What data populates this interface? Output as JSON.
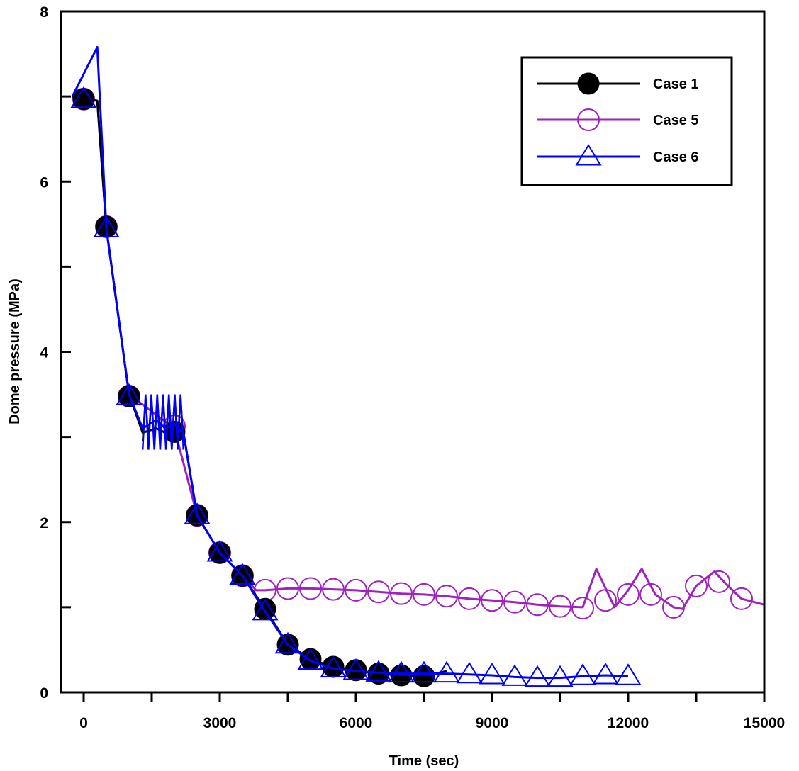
{
  "chart_data": {
    "type": "line",
    "title": "",
    "xlabel": "Time (sec)",
    "ylabel": "Dome pressure (MPa)",
    "xlim": [
      -500,
      15000
    ],
    "ylim": [
      0,
      8
    ],
    "x_ticks": [
      0,
      3000,
      6000,
      9000,
      12000,
      15000
    ],
    "x_tick_labels": [
      "0",
      "3000",
      "6000",
      "9000",
      "12000",
      "15000"
    ],
    "x_minor_ticks": [
      1500,
      4500,
      7500,
      10500,
      13500
    ],
    "y_ticks": [
      0,
      2,
      4,
      6,
      8
    ],
    "y_tick_labels": [
      "0",
      "2",
      "4",
      "6",
      "8"
    ],
    "y_minor_ticks": [
      1,
      3,
      5,
      7
    ],
    "grid": false,
    "legend_position": "top-right",
    "series": [
      {
        "name": "Case 1",
        "color": "#000000",
        "marker": "filled-circle",
        "x": [
          -250,
          300,
          500,
          1000,
          1300,
          1600,
          1800,
          2000,
          2200,
          2500,
          3000,
          3500,
          4000,
          4500,
          5000,
          5500,
          6000,
          6500,
          7000,
          7500,
          8000
        ],
        "y": [
          7.0,
          6.95,
          5.45,
          3.5,
          3.05,
          3.1,
          3.05,
          3.1,
          3.05,
          2.08,
          1.64,
          1.37,
          0.98,
          0.56,
          0.39,
          0.3,
          0.26,
          0.22,
          0.2,
          0.19,
          0.25
        ],
        "marker_x": [
          0,
          500,
          1000,
          2000,
          2500,
          3000,
          3500,
          4000,
          4500,
          5000,
          5500,
          6000,
          6500,
          7000,
          7500
        ],
        "marker_y": [
          6.97,
          5.47,
          3.48,
          3.06,
          2.08,
          1.64,
          1.37,
          0.98,
          0.56,
          0.39,
          0.3,
          0.26,
          0.22,
          0.2,
          0.19
        ]
      },
      {
        "name": "Case 5",
        "color": "#a020c0",
        "marker": "open-circle",
        "x": [
          -250,
          300,
          500,
          1000,
          2000,
          2500,
          3000,
          3500,
          3800,
          4000,
          4500,
          5000,
          5500,
          6000,
          6500,
          7000,
          7500,
          8000,
          8500,
          9000,
          9500,
          10000,
          10500,
          11000,
          11300,
          11700,
          12000,
          12300,
          12600,
          13000,
          13200,
          13500,
          13900,
          14200,
          14500,
          15000
        ],
        "y": [
          7.0,
          6.95,
          5.45,
          3.5,
          3.1,
          2.08,
          1.64,
          1.37,
          1.2,
          1.2,
          1.22,
          1.22,
          1.21,
          1.2,
          1.18,
          1.16,
          1.15,
          1.13,
          1.1,
          1.08,
          1.06,
          1.03,
          1.01,
          1.0,
          1.45,
          1.0,
          1.2,
          1.45,
          1.15,
          1.0,
          0.98,
          1.25,
          1.42,
          1.25,
          1.1,
          1.03
        ],
        "marker_x": [
          0,
          500,
          1000,
          2000,
          2500,
          3000,
          3500,
          4000,
          4500,
          5000,
          5500,
          6000,
          6500,
          7000,
          7500,
          8000,
          8500,
          9000,
          9500,
          10000,
          10500,
          11000,
          11500,
          12000,
          12500,
          13000,
          13500,
          14000,
          14500
        ],
        "marker_y": [
          6.97,
          5.47,
          3.48,
          3.13,
          2.08,
          1.64,
          1.37,
          1.2,
          1.22,
          1.22,
          1.21,
          1.2,
          1.18,
          1.16,
          1.15,
          1.13,
          1.1,
          1.08,
          1.06,
          1.03,
          1.01,
          0.99,
          1.08,
          1.15,
          1.15,
          1.0,
          1.25,
          1.3,
          1.1
        ]
      },
      {
        "name": "Case 6",
        "color": "#0000ff",
        "marker": "open-triangle",
        "x": [
          -250,
          300,
          500,
          1000,
          1300,
          1600,
          1800,
          2000,
          2200,
          2500,
          3000,
          3500,
          4000,
          4500,
          5000,
          5500,
          6000,
          6500,
          7000,
          7500,
          8000,
          8500,
          9000,
          9500,
          10000,
          10500,
          11000,
          11500,
          12000
        ],
        "y": [
          7.0,
          7.58,
          5.45,
          3.5,
          3.1,
          3.2,
          3.1,
          3.15,
          3.05,
          2.08,
          1.64,
          1.37,
          0.95,
          0.56,
          0.37,
          0.28,
          0.25,
          0.23,
          0.22,
          0.22,
          0.22,
          0.21,
          0.2,
          0.18,
          0.17,
          0.17,
          0.19,
          0.2,
          0.19
        ],
        "marker_x": [
          0,
          500,
          1000,
          2500,
          3000,
          3500,
          4000,
          4500,
          5000,
          5500,
          6000,
          6500,
          7000,
          7500,
          8000,
          8500,
          9000,
          9500,
          10000,
          10500,
          11000,
          11500,
          12000
        ],
        "marker_y": [
          6.97,
          5.45,
          3.48,
          2.08,
          1.64,
          1.37,
          0.95,
          0.56,
          0.37,
          0.28,
          0.25,
          0.23,
          0.22,
          0.22,
          0.22,
          0.21,
          0.2,
          0.18,
          0.17,
          0.17,
          0.19,
          0.2,
          0.19
        ]
      }
    ],
    "oscillation_bands": [
      {
        "series": "Case 6",
        "x_range": [
          1300,
          2200
        ],
        "y_range": [
          2.85,
          3.5
        ]
      },
      {
        "series": "Case 1",
        "x_range": [
          1300,
          2200
        ],
        "y_range": [
          2.95,
          3.45
        ]
      }
    ]
  }
}
